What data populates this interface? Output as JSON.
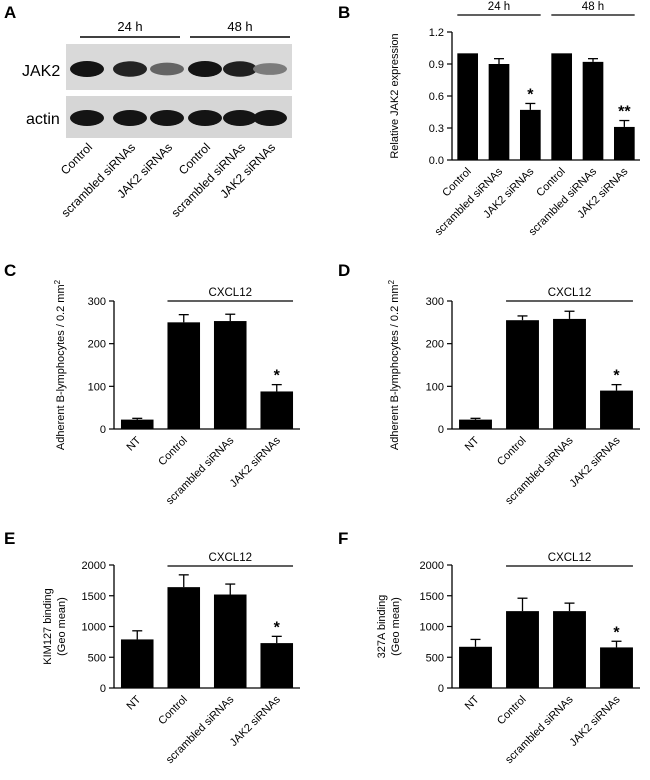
{
  "panels": {
    "A": {
      "letter": "A",
      "groups": [
        "24 h",
        "48 h"
      ],
      "rows": [
        "JAK2",
        "actin"
      ],
      "lanes": [
        "Control",
        "scrambled siRNAs",
        "JAK2 siRNAs",
        "Control",
        "scrambled siRNAs",
        "JAK2 siRNAs"
      ],
      "band_intensity": {
        "JAK2": [
          1.0,
          0.9,
          0.47,
          1.0,
          0.92,
          0.31
        ],
        "actin": [
          1.0,
          1.0,
          1.0,
          1.0,
          1.0,
          1.0
        ]
      }
    },
    "B": {
      "letter": "B"
    },
    "C": {
      "letter": "C"
    },
    "D": {
      "letter": "D"
    },
    "E": {
      "letter": "E"
    },
    "F": {
      "letter": "F"
    }
  },
  "chart_data": [
    {
      "panel": "B",
      "type": "bar",
      "categories": [
        "Control",
        "scrambled siRNAs",
        "JAK2 siRNAs",
        "Control",
        "scrambled siRNAs",
        "JAK2 siRNAs"
      ],
      "values": [
        1.0,
        0.9,
        0.47,
        1.0,
        0.92,
        0.31
      ],
      "errors": [
        0,
        0.05,
        0.06,
        0,
        0.03,
        0.06
      ],
      "significance": [
        "",
        "",
        "*",
        "",
        "",
        "**"
      ],
      "ylabel": "Relative JAK2 expression",
      "ylim": [
        0,
        1.2
      ],
      "yticks": [
        "0.0",
        "0.3",
        "0.6",
        "0.9",
        "1.2"
      ],
      "ytick_values": [
        0,
        0.3,
        0.6,
        0.9,
        1.2
      ],
      "groups": [
        {
          "label": "24 h",
          "from": 0,
          "to": 2
        },
        {
          "label": "48 h",
          "from": 3,
          "to": 5
        }
      ],
      "bar_color": "#000000"
    },
    {
      "panel": "C",
      "type": "bar",
      "categories": [
        "NT",
        "Control",
        "scrambled siRNAs",
        "JAK2 siRNAs"
      ],
      "values": [
        22,
        250,
        253,
        88
      ],
      "errors": [
        3,
        18,
        16,
        16
      ],
      "significance": [
        "",
        "",
        "",
        "*"
      ],
      "ylabel": "Adherent B-lymphocytes / 0.2 mm",
      "ylabel_sup": "2",
      "ylim": [
        0,
        300
      ],
      "yticks": [
        "0",
        "100",
        "200",
        "300"
      ],
      "ytick_values": [
        0,
        100,
        200,
        300
      ],
      "groups": [
        {
          "label": "CXCL12",
          "from": 1,
          "to": 3
        }
      ],
      "bar_color": "#000000"
    },
    {
      "panel": "D",
      "type": "bar",
      "categories": [
        "NT",
        "Control",
        "scrambled siRNAs",
        "JAK2 siRNAs"
      ],
      "values": [
        22,
        255,
        258,
        90
      ],
      "errors": [
        3,
        10,
        18,
        14
      ],
      "significance": [
        "",
        "",
        "",
        "*"
      ],
      "ylabel": "Adherent B-lymphocytes / 0.2 mm",
      "ylabel_sup": "2",
      "ylim": [
        0,
        300
      ],
      "yticks": [
        "0",
        "100",
        "200",
        "300"
      ],
      "ytick_values": [
        0,
        100,
        200,
        300
      ],
      "groups": [
        {
          "label": "CXCL12",
          "from": 1,
          "to": 3
        }
      ],
      "bar_color": "#000000"
    },
    {
      "panel": "E",
      "type": "bar",
      "categories": [
        "NT",
        "Control",
        "scrambled siRNAs",
        "JAK2 siRNAs"
      ],
      "values": [
        790,
        1640,
        1520,
        730
      ],
      "errors": [
        140,
        200,
        170,
        110
      ],
      "significance": [
        "",
        "",
        "",
        "*"
      ],
      "ylabel": "KIM127 binding",
      "ylabel2": "(Geo mean)",
      "ylim": [
        0,
        2000
      ],
      "yticks": [
        "0",
        "500",
        "1000",
        "1500",
        "2000"
      ],
      "ytick_values": [
        0,
        500,
        1000,
        1500,
        2000
      ],
      "groups": [
        {
          "label": "CXCL12",
          "from": 1,
          "to": 3
        }
      ],
      "bar_color": "#000000"
    },
    {
      "panel": "F",
      "type": "bar",
      "categories": [
        "NT",
        "Control",
        "scrambled siRNAs",
        "JAK2 siRNAs"
      ],
      "values": [
        670,
        1250,
        1250,
        660
      ],
      "errors": [
        120,
        210,
        130,
        100
      ],
      "significance": [
        "",
        "",
        "",
        "*"
      ],
      "ylabel": "327A binding",
      "ylabel2": "(Geo mean)",
      "ylim": [
        0,
        2000
      ],
      "yticks": [
        "0",
        "500",
        "1000",
        "1500",
        "2000"
      ],
      "ytick_values": [
        0,
        500,
        1000,
        1500,
        2000
      ],
      "groups": [
        {
          "label": "CXCL12",
          "from": 1,
          "to": 3
        }
      ],
      "bar_color": "#000000"
    }
  ]
}
